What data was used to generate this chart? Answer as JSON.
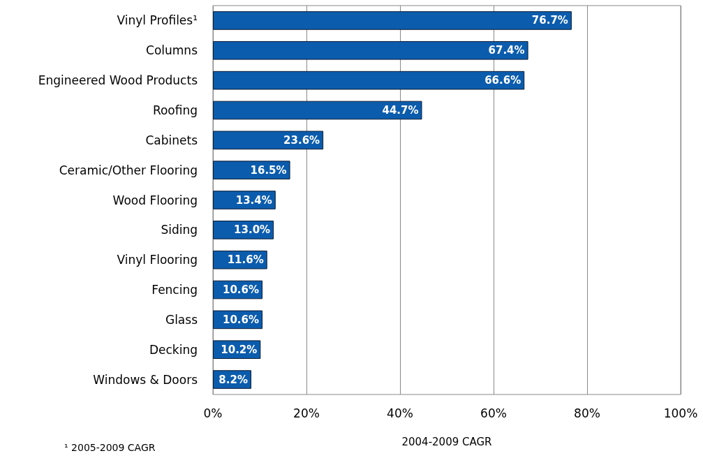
{
  "chart_data": {
    "type": "bar",
    "orientation": "horizontal",
    "xlabel": "2004-2009 CAGR",
    "categories": [
      "Vinyl Profiles¹",
      "Columns",
      "Engineered Wood Products",
      "Roofing",
      "Cabinets",
      "Ceramic/Other Flooring",
      "Wood Flooring",
      "Siding",
      "Vinyl Flooring",
      "Fencing",
      "Glass",
      "Decking",
      "Windows & Doors"
    ],
    "values": [
      76.7,
      67.4,
      66.6,
      44.7,
      23.6,
      16.5,
      13.4,
      13.0,
      11.6,
      10.6,
      10.6,
      10.2,
      8.2
    ],
    "value_labels": [
      "76.7%",
      "67.4%",
      "66.6%",
      "44.7%",
      "23.6%",
      "16.5%",
      "13.4%",
      "13.0%",
      "11.6%",
      "10.6%",
      "10.6%",
      "10.2%",
      "8.2%"
    ],
    "color": "#0b5cad",
    "xlim": [
      0,
      100
    ],
    "xticks": [
      {
        "value": 0,
        "label": "0%"
      },
      {
        "value": 20,
        "label": "20%"
      },
      {
        "value": 40,
        "label": "40%"
      },
      {
        "value": 60,
        "label": "60%"
      },
      {
        "value": 80,
        "label": "80%"
      },
      {
        "value": 100,
        "label": "100%"
      }
    ],
    "grid": "x",
    "annotations": [
      "¹ 2005-2009 CAGR"
    ]
  }
}
